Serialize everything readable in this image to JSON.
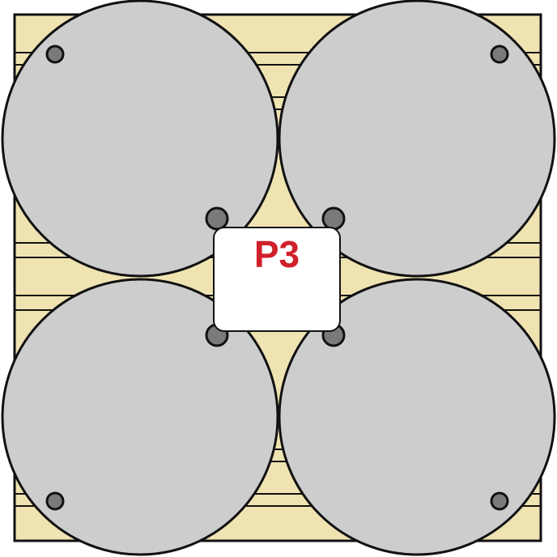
{
  "diagram": {
    "label": "P3",
    "colors": {
      "pallet_fill": "#efe3b2",
      "slat_fill": "#f4ebc4",
      "drum_fill": "#cdcdcd",
      "bolt_outer_fill": "#8c8c8c",
      "bolt_inner_fill": "#7a7a7a",
      "outline": "#111111",
      "label_text": "#d0202a",
      "card_fill": "#ffffff"
    },
    "drums": [
      {
        "id": "top-left"
      },
      {
        "id": "top-right"
      },
      {
        "id": "bottom-left"
      },
      {
        "id": "bottom-right"
      }
    ]
  }
}
